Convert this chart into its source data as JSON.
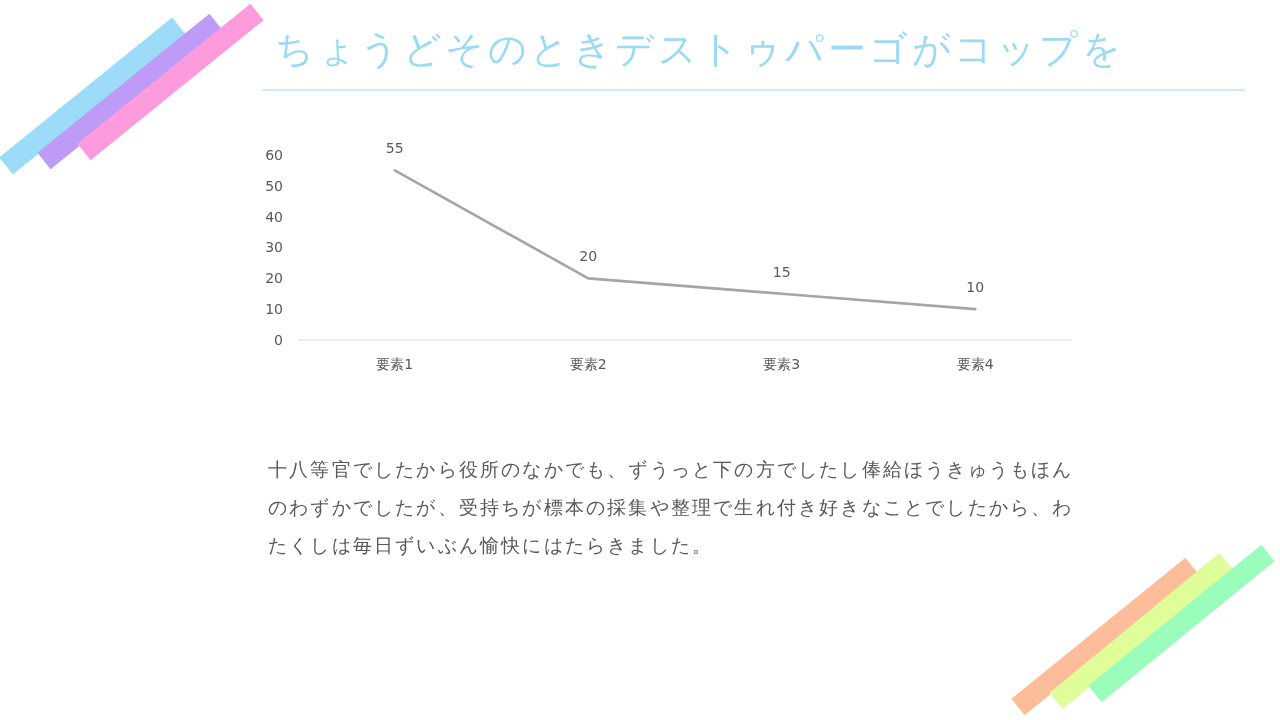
{
  "chart_data": {
    "type": "line",
    "title": "ちょうどそのときデストゥパーゴがコップを",
    "categories": [
      "要素1",
      "要素2",
      "要素3",
      "要素4"
    ],
    "series": [
      {
        "color": "#a5a5a5",
        "values": [
          55,
          20,
          15,
          10
        ]
      }
    ],
    "ylim": [
      0,
      60
    ],
    "yticks": [
      0,
      10,
      20,
      30,
      40,
      50,
      60
    ],
    "data_labels": true,
    "annotations": [
      "十八等官でしたから役所のなかでも、ずうっと下の方でしたし俸給ほうきゅうもほんのわずかでしたが、受持ちが標本の採集や整理で生れ付き好きなことでしたから、わたくしは毎日ずいぶん愉快にはたらきました。"
    ]
  }
}
